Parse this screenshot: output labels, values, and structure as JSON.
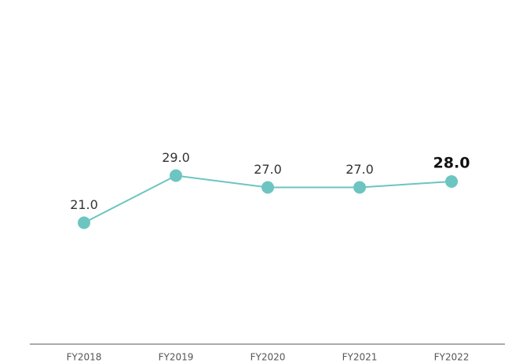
{
  "chart_data": {
    "type": "line",
    "categories": [
      "FY2018",
      "FY2019",
      "FY2020",
      "FY2021",
      "FY2022"
    ],
    "series": [
      {
        "color": "#6cc5c0",
        "values": [
          21,
          29,
          27,
          27,
          28
        ],
        "value_labels": [
          "21.0",
          "29.0",
          "27.0",
          "27.0",
          "28.0"
        ]
      }
    ],
    "ylim": [
      0,
      56
    ]
  }
}
